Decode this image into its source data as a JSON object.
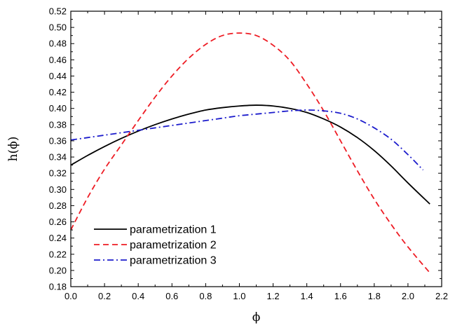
{
  "chart_data": {
    "type": "line",
    "title": "",
    "xlabel": "ϕ",
    "ylabel": "h(ϕ)",
    "xlim": [
      0.0,
      2.2
    ],
    "ylim": [
      0.18,
      0.52
    ],
    "x_ticks": [
      "0.0",
      "0.2",
      "0.4",
      "0.6",
      "0.8",
      "1.0",
      "1.2",
      "1.4",
      "1.6",
      "1.8",
      "2.0",
      "2.2"
    ],
    "y_ticks": [
      "0.18",
      "0.20",
      "0.22",
      "0.24",
      "0.26",
      "0.28",
      "0.30",
      "0.32",
      "0.34",
      "0.36",
      "0.38",
      "0.40",
      "0.42",
      "0.44",
      "0.46",
      "0.48",
      "0.50",
      "0.52"
    ],
    "grid": false,
    "legend_position": "bottom-left",
    "series": [
      {
        "name": "parametrization 1",
        "color": "#000000",
        "style": "solid",
        "x": [
          0.0,
          0.1,
          0.2,
          0.3,
          0.4,
          0.5,
          0.6,
          0.7,
          0.8,
          0.9,
          1.0,
          1.1,
          1.2,
          1.3,
          1.4,
          1.5,
          1.6,
          1.7,
          1.8,
          1.9,
          2.0,
          2.13
        ],
        "y": [
          0.33,
          0.342,
          0.353,
          0.363,
          0.372,
          0.38,
          0.387,
          0.393,
          0.398,
          0.401,
          0.403,
          0.404,
          0.403,
          0.4,
          0.395,
          0.387,
          0.377,
          0.364,
          0.348,
          0.329,
          0.308,
          0.282
        ]
      },
      {
        "name": "parametrization 2",
        "color": "#ee1c24",
        "style": "dashed",
        "x": [
          0.0,
          0.1,
          0.2,
          0.3,
          0.4,
          0.5,
          0.6,
          0.7,
          0.8,
          0.9,
          1.0,
          1.1,
          1.2,
          1.3,
          1.4,
          1.5,
          1.6,
          1.7,
          1.8,
          1.9,
          2.0,
          2.13
        ],
        "y": [
          0.25,
          0.29,
          0.325,
          0.355,
          0.385,
          0.414,
          0.44,
          0.462,
          0.479,
          0.49,
          0.493,
          0.49,
          0.478,
          0.459,
          0.43,
          0.397,
          0.36,
          0.323,
          0.288,
          0.257,
          0.229,
          0.197
        ]
      },
      {
        "name": "parametrization 3",
        "color": "#1c1ccc",
        "style": "dashdot",
        "x": [
          0.0,
          0.1,
          0.2,
          0.3,
          0.4,
          0.5,
          0.6,
          0.7,
          0.8,
          0.9,
          1.0,
          1.1,
          1.2,
          1.3,
          1.4,
          1.5,
          1.6,
          1.7,
          1.8,
          1.9,
          2.0,
          2.09
        ],
        "y": [
          0.361,
          0.364,
          0.367,
          0.37,
          0.373,
          0.376,
          0.379,
          0.382,
          0.385,
          0.388,
          0.391,
          0.393,
          0.395,
          0.397,
          0.398,
          0.397,
          0.394,
          0.387,
          0.376,
          0.362,
          0.343,
          0.324
        ]
      }
    ]
  }
}
